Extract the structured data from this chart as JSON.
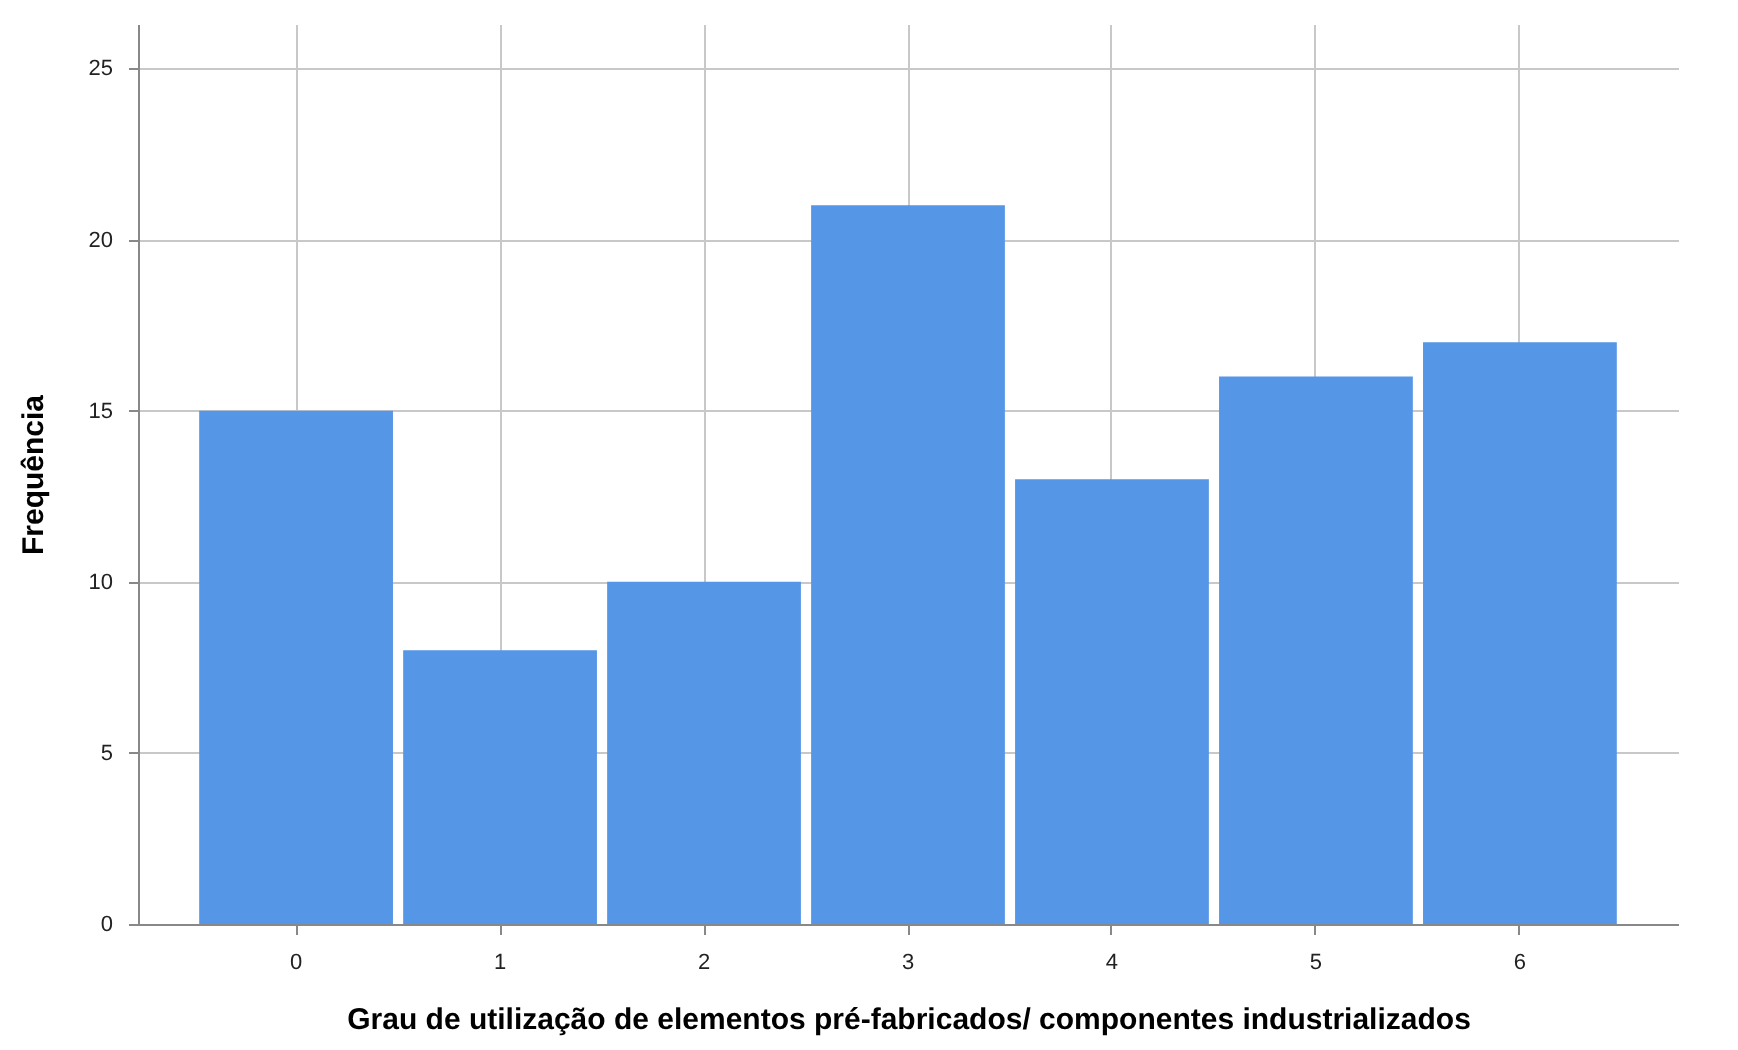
{
  "chart_data": {
    "type": "bar",
    "xlabel": "Grau de utilização de elementos pré-fabricados/ componentes industrializados",
    "ylabel": "Frequência",
    "categories": [
      "0",
      "1",
      "2",
      "3",
      "4",
      "5",
      "6"
    ],
    "values": [
      15,
      8,
      10,
      21,
      13,
      16,
      17
    ],
    "color": "#5596e6",
    "ylim": [
      0,
      26.3
    ],
    "yticks": [
      0,
      5,
      10,
      15,
      20,
      25
    ],
    "grid": true
  }
}
